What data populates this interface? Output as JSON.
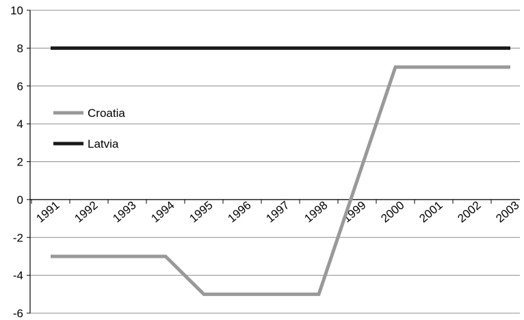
{
  "chart_data": {
    "type": "line",
    "categories": [
      "1991",
      "1992",
      "1993",
      "1994",
      "1995",
      "1996",
      "1997",
      "1998",
      "1999",
      "2000",
      "2001",
      "2002",
      "2003"
    ],
    "series": [
      {
        "name": "Croatia",
        "color": "#999999",
        "values": [
          -3,
          -3,
          -3,
          -3,
          -5,
          -5,
          -5,
          -5,
          1,
          7,
          7,
          7,
          7
        ]
      },
      {
        "name": "Latvia",
        "color": "#1a1a1a",
        "values": [
          8,
          8,
          8,
          8,
          8,
          8,
          8,
          8,
          8,
          8,
          8,
          8,
          8
        ]
      }
    ],
    "ylim": [
      -6,
      10
    ],
    "yticks": [
      "-6",
      "-4",
      "-2",
      "0",
      "2",
      "4",
      "6",
      "8",
      "10"
    ],
    "grid": true,
    "legend_position": "left"
  }
}
